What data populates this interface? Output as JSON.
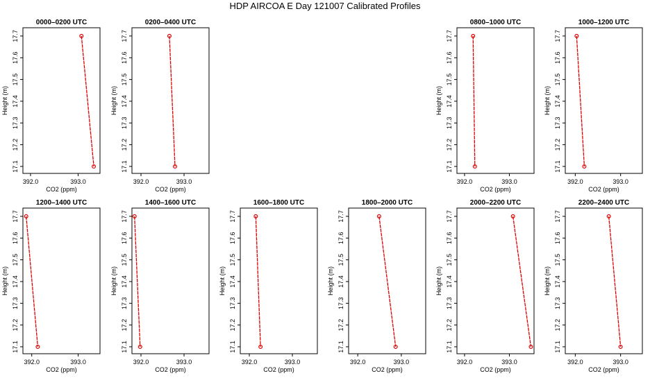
{
  "title": "HDP AIRCOA E  Day 121007  Calibrated Profiles",
  "chart_data": [
    {
      "type": "line",
      "title": "0000–0200 UTC",
      "x_label": "CO2 (ppm)",
      "y_label": "Height (m)",
      "color": "#e00000",
      "x": [
        393.07,
        393.33
      ],
      "values": [
        17.7,
        17.1
      ],
      "xlim": [
        391.84,
        393.46
      ],
      "ylim": [
        17.068,
        17.738
      ],
      "xticks": [
        {
          "value": 392,
          "label": "392.0"
        },
        {
          "value": 393,
          "label": "393.0"
        }
      ],
      "yticks": [
        17.1,
        17.2,
        17.3,
        17.4,
        17.5,
        17.6,
        17.7
      ]
    },
    {
      "type": "line",
      "title": "0200–0400 UTC",
      "x_label": "CO2 (ppm)",
      "y_label": "Height (m)",
      "color": "#e00000",
      "x": [
        392.66,
        392.79
      ],
      "values": [
        17.7,
        17.1
      ],
      "xlim": [
        391.79,
        393.58
      ],
      "ylim": [
        17.068,
        17.738
      ],
      "xticks": [
        {
          "value": 392,
          "label": "392.0"
        },
        {
          "value": 393,
          "label": "393.0"
        }
      ],
      "yticks": [
        17.1,
        17.2,
        17.3,
        17.4,
        17.5,
        17.6,
        17.7
      ]
    },
    {
      "type": "line",
      "title": "0800–1000 UTC",
      "x_label": "CO2 (ppm)",
      "y_label": "Height (m)",
      "color": "#e00000",
      "x": [
        392.19,
        392.23
      ],
      "values": [
        17.7,
        17.1
      ],
      "xlim": [
        391.83,
        393.55
      ],
      "ylim": [
        17.068,
        17.738
      ],
      "xticks": [
        {
          "value": 392,
          "label": "392.0"
        },
        {
          "value": 393,
          "label": "393.0"
        }
      ],
      "yticks": [
        17.1,
        17.2,
        17.3,
        17.4,
        17.5,
        17.6,
        17.7
      ]
    },
    {
      "type": "line",
      "title": "1000–1200 UTC",
      "x_label": "CO2 (ppm)",
      "y_label": "Height (m)",
      "color": "#e00000",
      "x": [
        392.03,
        392.2
      ],
      "values": [
        17.7,
        17.1
      ],
      "xlim": [
        391.78,
        393.48
      ],
      "ylim": [
        17.068,
        17.738
      ],
      "xticks": [
        {
          "value": 392,
          "label": "392.0"
        },
        {
          "value": 393,
          "label": "393.0"
        }
      ],
      "yticks": [
        17.1,
        17.2,
        17.3,
        17.4,
        17.5,
        17.6,
        17.7
      ]
    },
    {
      "type": "line",
      "title": "1200–1400 UTC",
      "x_label": "CO2 (ppm)",
      "y_label": "Height (m)",
      "color": "#e00000",
      "x": [
        391.88,
        392.13
      ],
      "values": [
        17.7,
        17.1
      ],
      "xlim": [
        391.81,
        393.47
      ],
      "ylim": [
        17.068,
        17.738
      ],
      "xticks": [
        {
          "value": 392,
          "label": "392.0"
        },
        {
          "value": 393,
          "label": "393.0"
        }
      ],
      "yticks": [
        17.1,
        17.2,
        17.3,
        17.4,
        17.5,
        17.6,
        17.7
      ]
    },
    {
      "type": "line",
      "title": "1400–1600 UTC",
      "x_label": "CO2 (ppm)",
      "y_label": "Height (m)",
      "color": "#e00000",
      "x": [
        391.85,
        391.98
      ],
      "values": [
        17.7,
        17.1
      ],
      "xlim": [
        391.79,
        393.58
      ],
      "ylim": [
        17.068,
        17.738
      ],
      "xticks": [
        {
          "value": 392,
          "label": "392.0"
        },
        {
          "value": 393,
          "label": "393.0"
        }
      ],
      "yticks": [
        17.1,
        17.2,
        17.3,
        17.4,
        17.5,
        17.6,
        17.7
      ]
    },
    {
      "type": "line",
      "title": "1600–1800 UTC",
      "x_label": "CO2 (ppm)",
      "y_label": "Height (m)",
      "color": "#e00000",
      "x": [
        392.15,
        392.26
      ],
      "values": [
        17.7,
        17.1
      ],
      "xlim": [
        391.79,
        393.58
      ],
      "ylim": [
        17.068,
        17.738
      ],
      "xticks": [
        {
          "value": 392,
          "label": "392.0"
        },
        {
          "value": 393,
          "label": "393.0"
        }
      ],
      "yticks": [
        17.1,
        17.2,
        17.3,
        17.4,
        17.5,
        17.6,
        17.7
      ]
    },
    {
      "type": "line",
      "title": "1800–2000 UTC",
      "x_label": "CO2 (ppm)",
      "y_label": "Height (m)",
      "color": "#e00000",
      "x": [
        392.49,
        392.87
      ],
      "values": [
        17.7,
        17.1
      ],
      "xlim": [
        391.79,
        393.56
      ],
      "ylim": [
        17.068,
        17.738
      ],
      "xticks": [
        {
          "value": 392,
          "label": "392.0"
        },
        {
          "value": 393,
          "label": "393.0"
        }
      ],
      "yticks": [
        17.1,
        17.2,
        17.3,
        17.4,
        17.5,
        17.6,
        17.7
      ]
    },
    {
      "type": "line",
      "title": "2000–2200 UTC",
      "x_label": "CO2 (ppm)",
      "y_label": "Height (m)",
      "color": "#e00000",
      "x": [
        393.08,
        393.48
      ],
      "values": [
        17.7,
        17.1
      ],
      "xlim": [
        391.83,
        393.55
      ],
      "ylim": [
        17.068,
        17.738
      ],
      "xticks": [
        {
          "value": 392,
          "label": "392.0"
        },
        {
          "value": 393,
          "label": "393.0"
        }
      ],
      "yticks": [
        17.1,
        17.2,
        17.3,
        17.4,
        17.5,
        17.6,
        17.7
      ]
    },
    {
      "type": "line",
      "title": "2200–2400 UTC",
      "x_label": "CO2 (ppm)",
      "y_label": "Height (m)",
      "color": "#e00000",
      "x": [
        392.74,
        393.0
      ],
      "values": [
        17.7,
        17.1
      ],
      "xlim": [
        391.78,
        393.48
      ],
      "ylim": [
        17.068,
        17.738
      ],
      "xticks": [
        {
          "value": 392,
          "label": "392.0"
        },
        {
          "value": 393,
          "label": "393.0"
        }
      ],
      "yticks": [
        17.1,
        17.2,
        17.3,
        17.4,
        17.5,
        17.6,
        17.7
      ]
    }
  ]
}
